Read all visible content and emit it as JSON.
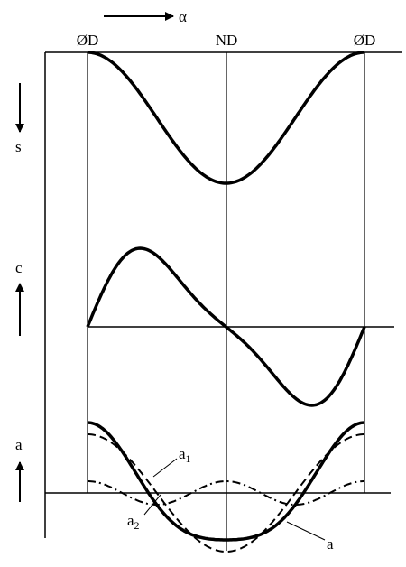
{
  "direction_label": "α",
  "positions": [
    "ØD",
    "ND",
    "ØD"
  ],
  "side_labels": [
    "s",
    "c",
    "a"
  ],
  "curve_labels": [
    {
      "text": "a",
      "sub": "1"
    },
    {
      "text": "a",
      "sub": "2"
    },
    {
      "text": "a"
    }
  ]
}
